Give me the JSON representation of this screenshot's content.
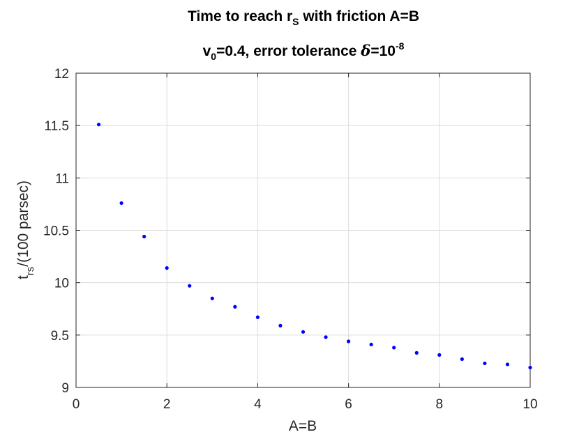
{
  "chart_data": {
    "type": "scatter",
    "title": {
      "line1": {
        "pre": "Time to reach r",
        "sub": "S",
        "post": " with friction A=B"
      },
      "line2": {
        "pre": "v",
        "sub": "0",
        "mid": "=0.4, error tolerance ",
        "delta": "δ",
        "post": "=10",
        "sup": "-8"
      }
    },
    "xlabel": "A=B",
    "ylabel": {
      "pre": "t",
      "sub": "rs",
      "post": "/(100 parsec)"
    },
    "xlim": [
      0,
      10
    ],
    "ylim": [
      9,
      12
    ],
    "xticks": [
      "0",
      "2",
      "4",
      "6",
      "8",
      "10"
    ],
    "yticks": [
      "9",
      "9.5",
      "10",
      "10.5",
      "11",
      "11.5",
      "12"
    ],
    "grid": true,
    "marker_color": "#0000ff",
    "x": [
      0.5,
      1.0,
      1.5,
      2.0,
      2.5,
      3.0,
      3.5,
      4.0,
      4.5,
      5.0,
      5.5,
      6.0,
      6.5,
      7.0,
      7.5,
      8.0,
      8.5,
      9.0,
      9.5,
      10.0
    ],
    "y": [
      11.51,
      10.76,
      10.44,
      10.14,
      9.97,
      9.85,
      9.77,
      9.67,
      9.59,
      9.53,
      9.48,
      9.44,
      9.41,
      9.38,
      9.33,
      9.31,
      9.27,
      9.23,
      9.22,
      9.19
    ]
  }
}
